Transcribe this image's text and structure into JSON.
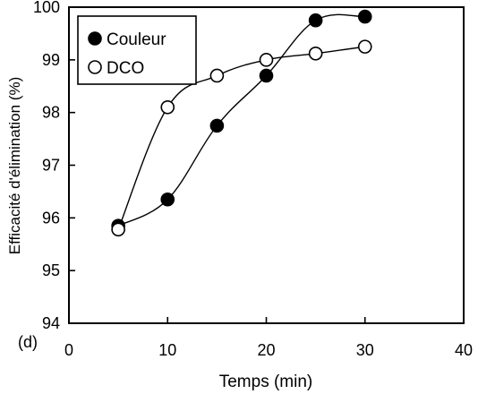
{
  "chart_data": {
    "type": "line",
    "panel_label": "(d)",
    "xlabel": "Temps (min)",
    "ylabel": "Efficacité d'élimination (%)",
    "xlim": [
      0,
      40
    ],
    "ylim": [
      94,
      100
    ],
    "x_ticks": [
      "0",
      "10",
      "20",
      "30",
      "40"
    ],
    "y_ticks": [
      "94",
      "95",
      "96",
      "97",
      "98",
      "99",
      "100"
    ],
    "legend_position": "top-left",
    "grid": false,
    "series": [
      {
        "name": "Couleur",
        "marker": "filled-circle",
        "color": "#000000",
        "x": [
          5,
          10,
          15,
          20,
          25,
          30
        ],
        "y": [
          95.85,
          96.35,
          97.75,
          98.7,
          99.75,
          99.82
        ]
      },
      {
        "name": "DCO",
        "marker": "open-circle",
        "color": "#000000",
        "x": [
          5,
          10,
          15,
          20,
          25,
          30
        ],
        "y": [
          95.78,
          98.1,
          98.7,
          99.0,
          99.12,
          99.25
        ]
      }
    ]
  }
}
